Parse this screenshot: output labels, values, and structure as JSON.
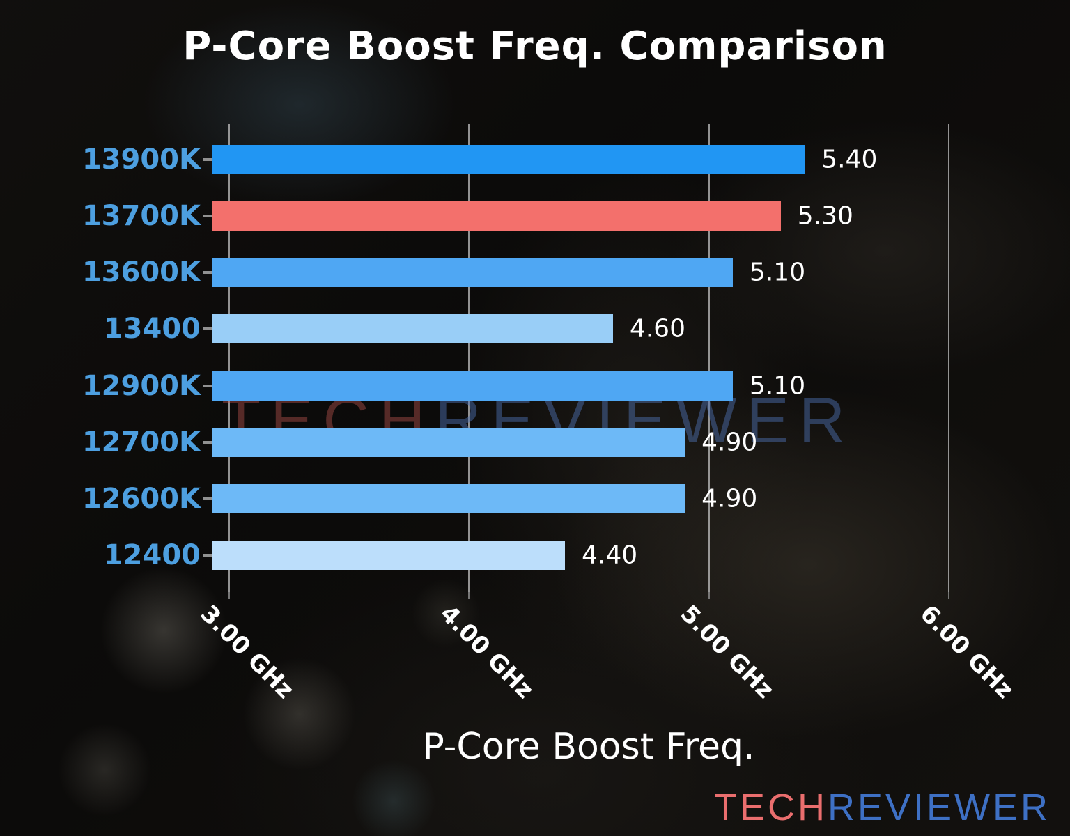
{
  "title": "P-Core Boost Freq. Comparison",
  "chart_data": {
    "type": "bar",
    "orientation": "horizontal",
    "title": "P-Core Boost Freq. Comparison",
    "xlabel": "P-Core Boost Freq.",
    "ylabel": "",
    "categories": [
      "13900K",
      "13700K",
      "13600K",
      "13400",
      "12900K",
      "12700K",
      "12600K",
      "12400"
    ],
    "values": [
      5.4,
      5.3,
      5.1,
      4.6,
      5.1,
      4.9,
      4.9,
      4.4
    ],
    "value_labels": [
      "5.40",
      "5.30",
      "5.10",
      "4.60",
      "5.10",
      "4.90",
      "4.90",
      "4.40"
    ],
    "unit": "GHz",
    "bar_colors": [
      "#2196f3",
      "#f3706c",
      "#4fa7f3",
      "#99cef7",
      "#4fa7f3",
      "#6db9f7",
      "#6db9f7",
      "#bcdefb"
    ],
    "highlight_index": 1,
    "x_ticks": [
      {
        "label": "3.00 GHz",
        "value": 3.0
      },
      {
        "label": "4.00 GHz",
        "value": 4.0
      },
      {
        "label": "5.00 GHz",
        "value": 5.0
      },
      {
        "label": "6.00 GHz",
        "value": 6.0
      }
    ],
    "xlim": [
      2.93,
      6.3
    ],
    "grid": true,
    "legend": "none",
    "colors": {
      "title": "#ffffff",
      "category_label": "#4d9fe0",
      "value_label": "#ffffff",
      "gridline": "#bababa",
      "background": "#0c0b0a"
    }
  },
  "watermark": {
    "center": {
      "tech": "TECH",
      "reviewer": "REVIEWER",
      "tech_color": "rgba(190,85,80,0.42)",
      "reviewer_color": "rgba(78,112,178,0.48)"
    },
    "footer": {
      "tech": "TECH",
      "reviewer": "REVIEWER",
      "tech_color": "#ea6e6e",
      "reviewer_color": "#3e70c4"
    }
  }
}
